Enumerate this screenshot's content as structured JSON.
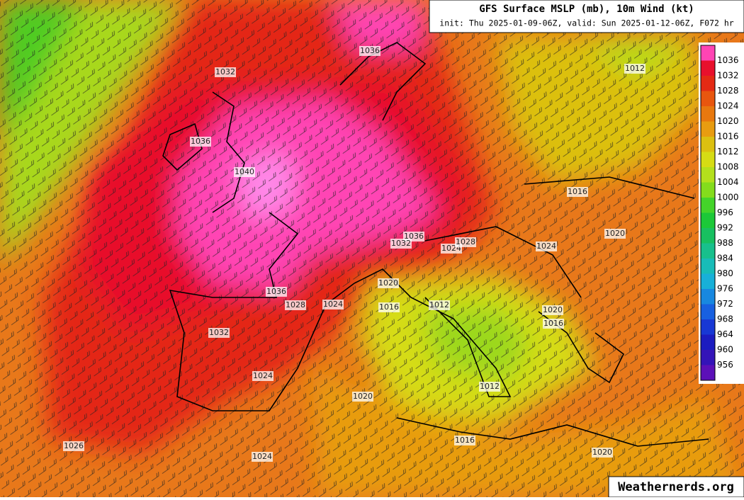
{
  "title": "GFS Surface MSLP (mb), 10m Wind (kt)",
  "subtitle": "init: Thu 2025-01-09-06Z, valid: Sun 2025-01-12-06Z, F072 hr",
  "watermark": "Weathernerds.org",
  "colorbar": {
    "labels": [
      1036,
      1032,
      1028,
      1024,
      1020,
      1016,
      1012,
      1008,
      1004,
      1000,
      996,
      992,
      988,
      984,
      980,
      976,
      972,
      968,
      964,
      960,
      956
    ],
    "colors": [
      "#ff44b4",
      "#e8102c",
      "#e42a14",
      "#e8560e",
      "#e8780e",
      "#e89c10",
      "#dcc010",
      "#d6dc14",
      "#b4e01c",
      "#84dc1c",
      "#44d42a",
      "#1cc838",
      "#18c060",
      "#18c08c",
      "#18bcb8",
      "#18b0d8",
      "#1888e0",
      "#1860e0",
      "#1838d4",
      "#1c1cc0",
      "#3414b8",
      "#5c10b8"
    ]
  },
  "contour_labels": [
    "1036",
    "1032",
    "1036",
    "1040",
    "1012",
    "1016",
    "1020",
    "1036",
    "1032",
    "1024",
    "1028",
    "1024",
    "1020",
    "1036",
    "1028",
    "1024",
    "1016",
    "1012",
    "1020",
    "1016",
    "1032",
    "1024",
    "1012",
    "1020",
    "1016",
    "1026",
    "1024",
    "1020"
  ]
}
